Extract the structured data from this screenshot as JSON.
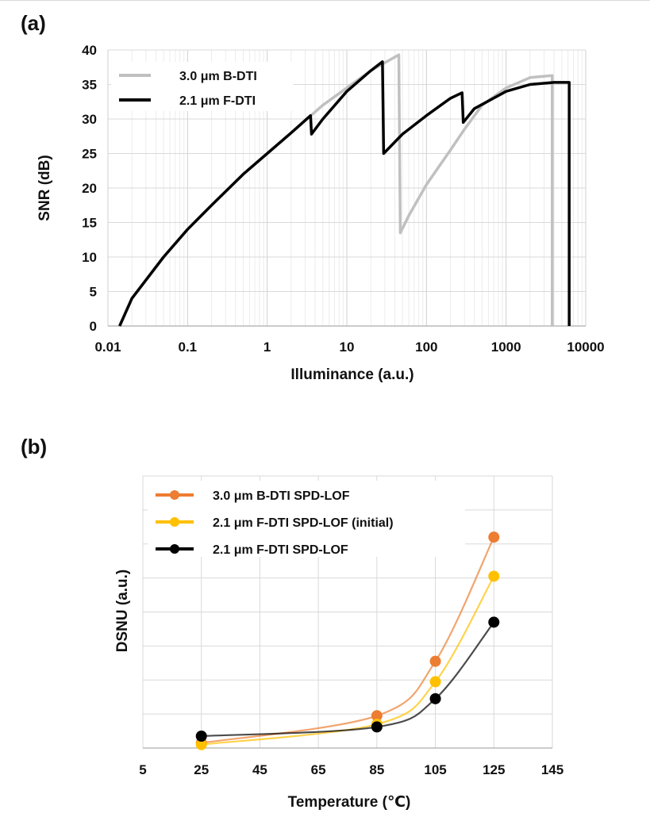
{
  "panels": {
    "a_label": "(a)",
    "b_label": "(b)"
  },
  "chart_data": [
    {
      "type": "line",
      "xlabel": "Illuminance (a.u.)",
      "ylabel": "SNR (dB)",
      "x_scale": "log",
      "xlim": [
        0.01,
        10000
      ],
      "ylim": [
        0,
        40
      ],
      "x_ticks": [
        "0.01",
        "0.1",
        "1",
        "10",
        "100",
        "1000",
        "10000"
      ],
      "y_ticks": [
        "0",
        "5",
        "10",
        "15",
        "20",
        "25",
        "30",
        "35",
        "40"
      ],
      "grid": true,
      "legend_position": "top-left",
      "series": [
        {
          "name": "3.0 μm B-DTI",
          "color": "#c0c0c0",
          "x": [
            0.014,
            0.02,
            0.05,
            0.1,
            0.2,
            0.5,
            1,
            2,
            5,
            10,
            20,
            45,
            47,
            60,
            100,
            200,
            300,
            500,
            1000,
            2000,
            3800,
            3800
          ],
          "y": [
            0,
            4,
            10,
            14,
            17.5,
            22,
            25,
            28,
            32,
            34.5,
            37,
            39.3,
            13.5,
            16,
            20.5,
            25.5,
            28.5,
            32,
            34.5,
            36,
            36.3,
            0
          ]
        },
        {
          "name": "2.1 μm F-DTI",
          "color": "#000000",
          "x": [
            0.014,
            0.02,
            0.05,
            0.1,
            0.2,
            0.5,
            1,
            2,
            3.5,
            3.6,
            5,
            10,
            20,
            28,
            29,
            50,
            100,
            200,
            280,
            290,
            400,
            1000,
            2000,
            4000,
            6200,
            6200
          ],
          "y": [
            0,
            4,
            10,
            14,
            17.5,
            22,
            25,
            28,
            30.5,
            27.8,
            30,
            34,
            37,
            38.3,
            25,
            27.8,
            30.5,
            33,
            33.8,
            29.5,
            31.5,
            34,
            35,
            35.3,
            35.3,
            0
          ]
        }
      ]
    },
    {
      "type": "scatter",
      "xlabel": "Temperature (℃)",
      "ylabel": "DSNU (a.u.)",
      "xlim": [
        5,
        145
      ],
      "ylim": [
        0,
        8
      ],
      "x_ticks": [
        "5",
        "25",
        "45",
        "65",
        "85",
        "105",
        "125",
        "145"
      ],
      "grid": true,
      "legend_position": "top-left",
      "series": [
        {
          "name": "3.0 μm B-DTI SPD-LOF",
          "color": "#ed7d31",
          "x": [
            25,
            85,
            105,
            125
          ],
          "y": [
            0.15,
            0.95,
            2.55,
            6.2
          ]
        },
        {
          "name": "2.1 μm F-DTI SPD-LOF (initial)",
          "color": "#ffc000",
          "x": [
            25,
            85,
            105,
            125
          ],
          "y": [
            0.1,
            0.7,
            1.95,
            5.05
          ]
        },
        {
          "name": "2.1 μm F-DTI SPD-LOF",
          "color": "#000000",
          "x": [
            25,
            85,
            105,
            125
          ],
          "y": [
            0.35,
            0.62,
            1.45,
            3.7
          ]
        }
      ]
    }
  ]
}
